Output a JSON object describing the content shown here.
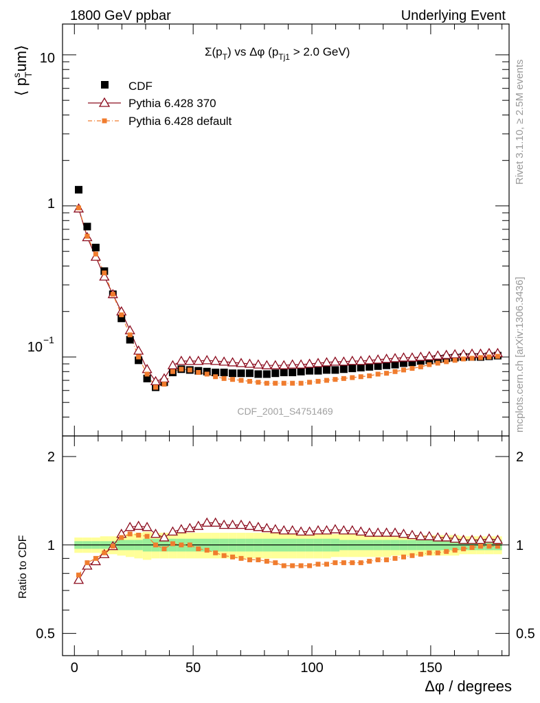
{
  "header": {
    "left_title": "1800 GeV ppbar",
    "right_title": "Underlying Event"
  },
  "side_labels": {
    "rivet": "Rivet 3.1.10, ≥ 2.5M events",
    "mcplots": "mcplots.cern.ch [arXiv:1306.3436]"
  },
  "colors": {
    "cdf": "#000000",
    "pythia370": "#8b0a1c",
    "pythia_default": "#f07c2e",
    "band_inner": "#99ee99",
    "band_outer": "#ffff99"
  },
  "chart_data": [
    {
      "type": "scatter",
      "panel": "main",
      "title_parts": {
        "sigma": "Σ(p",
        "sub_t": "T",
        "mid": ") vs Δφ (p",
        "sub_tj1": "Tj1",
        "tail": " > 2.0 GeV)"
      },
      "ylabel_parts": {
        "pre": "⟨ p",
        "sup": "s",
        "sub": "T",
        "post": "um⟩"
      },
      "watermark": "CDF_2001_S4751469",
      "yscale": "log",
      "ylim": [
        0.03,
        16
      ],
      "xlim": [
        -5,
        183
      ],
      "ytick_labels": {
        "t10": "10",
        "t1": "1",
        "t01_base": "10",
        "t01_exp": "−1"
      },
      "legend_position": "top-left",
      "x": [
        1.8,
        5.4,
        9.0,
        12.6,
        16.2,
        19.8,
        23.4,
        27.0,
        30.6,
        34.2,
        37.8,
        41.4,
        45.0,
        48.6,
        52.2,
        55.8,
        59.4,
        63.0,
        66.6,
        70.2,
        73.8,
        77.4,
        81.0,
        84.6,
        88.2,
        91.8,
        95.4,
        99.0,
        102.6,
        106.2,
        109.8,
        113.4,
        117.0,
        120.6,
        124.2,
        127.8,
        131.4,
        135.0,
        138.6,
        142.2,
        145.8,
        149.4,
        153.0,
        156.6,
        160.2,
        163.8,
        167.4,
        171.0,
        174.6,
        178.2
      ],
      "series": [
        {
          "name": "CDF",
          "marker": "filled-square",
          "values": [
            1.28,
            0.73,
            0.53,
            0.37,
            0.26,
            0.18,
            0.13,
            0.095,
            0.072,
            0.063,
            0.068,
            0.079,
            0.083,
            0.082,
            0.081,
            0.08,
            0.079,
            0.079,
            0.078,
            0.078,
            0.078,
            0.077,
            0.077,
            0.078,
            0.079,
            0.079,
            0.08,
            0.081,
            0.081,
            0.082,
            0.082,
            0.083,
            0.084,
            0.085,
            0.086,
            0.087,
            0.088,
            0.089,
            0.091,
            0.092,
            0.094,
            0.095,
            0.097,
            0.098,
            0.099,
            0.1,
            0.1,
            0.1,
            0.101,
            0.102
          ]
        },
        {
          "name": "Pythia 6.428 370",
          "marker": "open-triangle",
          "values": [
            0.96,
            0.62,
            0.46,
            0.34,
            0.26,
            0.2,
            0.15,
            0.11,
            0.083,
            0.069,
            0.072,
            0.088,
            0.094,
            0.094,
            0.094,
            0.095,
            0.094,
            0.093,
            0.092,
            0.091,
            0.09,
            0.089,
            0.088,
            0.088,
            0.088,
            0.089,
            0.089,
            0.09,
            0.091,
            0.092,
            0.093,
            0.093,
            0.094,
            0.094,
            0.095,
            0.096,
            0.097,
            0.098,
            0.099,
            0.099,
            0.1,
            0.101,
            0.102,
            0.103,
            0.104,
            0.104,
            0.105,
            0.105,
            0.106,
            0.106
          ]
        },
        {
          "name": "Pythia 6.428 default",
          "marker": "small-square-dashdot",
          "values": [
            0.97,
            0.63,
            0.48,
            0.36,
            0.26,
            0.19,
            0.14,
            0.1,
            0.077,
            0.063,
            0.066,
            0.08,
            0.083,
            0.082,
            0.079,
            0.077,
            0.074,
            0.072,
            0.071,
            0.07,
            0.069,
            0.068,
            0.067,
            0.067,
            0.067,
            0.067,
            0.067,
            0.068,
            0.069,
            0.07,
            0.071,
            0.072,
            0.073,
            0.074,
            0.075,
            0.077,
            0.078,
            0.08,
            0.082,
            0.084,
            0.086,
            0.089,
            0.091,
            0.093,
            0.095,
            0.097,
            0.098,
            0.099,
            0.1,
            0.101
          ]
        }
      ]
    },
    {
      "type": "scatter",
      "panel": "ratio",
      "ylabel": "Ratio to CDF",
      "yscale": "log",
      "ylim": [
        0.42,
        2.35
      ],
      "xlim": [
        -5,
        183
      ],
      "yticks": [
        0.5,
        1,
        2
      ],
      "ytick_labels": [
        "0.5",
        "1",
        "2"
      ],
      "xticks": [
        0,
        50,
        100,
        150
      ],
      "xtick_labels": [
        "0",
        "50",
        "100",
        "150"
      ],
      "xlabel": "Δφ / degrees",
      "band_inner_halfwidth": [
        0.03,
        0.03,
        0.03,
        0.03,
        0.03,
        0.04,
        0.04,
        0.04,
        0.05,
        0.05,
        0.05,
        0.05,
        0.05,
        0.05,
        0.05,
        0.05,
        0.05,
        0.05,
        0.05,
        0.05,
        0.05,
        0.05,
        0.05,
        0.05,
        0.05,
        0.05,
        0.05,
        0.05,
        0.05,
        0.05,
        0.05,
        0.04,
        0.04,
        0.04,
        0.04,
        0.04,
        0.04,
        0.04,
        0.04,
        0.04,
        0.04,
        0.04,
        0.04,
        0.04,
        0.04,
        0.04,
        0.04,
        0.04,
        0.04,
        0.04
      ],
      "band_outer_halfwidth": [
        0.06,
        0.06,
        0.06,
        0.07,
        0.07,
        0.08,
        0.09,
        0.1,
        0.11,
        0.1,
        0.1,
        0.1,
        0.1,
        0.1,
        0.1,
        0.1,
        0.1,
        0.1,
        0.1,
        0.1,
        0.1,
        0.1,
        0.1,
        0.1,
        0.1,
        0.1,
        0.1,
        0.1,
        0.1,
        0.1,
        0.09,
        0.09,
        0.09,
        0.09,
        0.09,
        0.09,
        0.09,
        0.08,
        0.08,
        0.08,
        0.08,
        0.08,
        0.08,
        0.08,
        0.08,
        0.07,
        0.07,
        0.07,
        0.07,
        0.07
      ],
      "series": [
        {
          "name": "Pythia 6.428 370",
          "values": [
            0.76,
            0.85,
            0.88,
            0.93,
            0.99,
            1.09,
            1.15,
            1.16,
            1.15,
            1.09,
            1.06,
            1.11,
            1.13,
            1.14,
            1.16,
            1.19,
            1.19,
            1.17,
            1.17,
            1.17,
            1.16,
            1.15,
            1.14,
            1.13,
            1.12,
            1.12,
            1.11,
            1.11,
            1.12,
            1.12,
            1.13,
            1.12,
            1.12,
            1.11,
            1.1,
            1.1,
            1.1,
            1.1,
            1.09,
            1.08,
            1.07,
            1.07,
            1.06,
            1.06,
            1.05,
            1.04,
            1.04,
            1.04,
            1.05,
            1.04
          ]
        },
        {
          "name": "Pythia 6.428 default",
          "values": [
            0.79,
            0.87,
            0.9,
            0.94,
            0.99,
            1.06,
            1.09,
            1.08,
            1.07,
            1.0,
            0.97,
            1.01,
            1.0,
            1.0,
            0.97,
            0.96,
            0.94,
            0.92,
            0.91,
            0.9,
            0.89,
            0.89,
            0.88,
            0.87,
            0.85,
            0.85,
            0.85,
            0.85,
            0.86,
            0.86,
            0.87,
            0.87,
            0.87,
            0.87,
            0.88,
            0.89,
            0.89,
            0.9,
            0.91,
            0.92,
            0.93,
            0.94,
            0.94,
            0.95,
            0.96,
            0.97,
            0.98,
            0.99,
            0.99,
            0.99
          ]
        }
      ]
    }
  ]
}
